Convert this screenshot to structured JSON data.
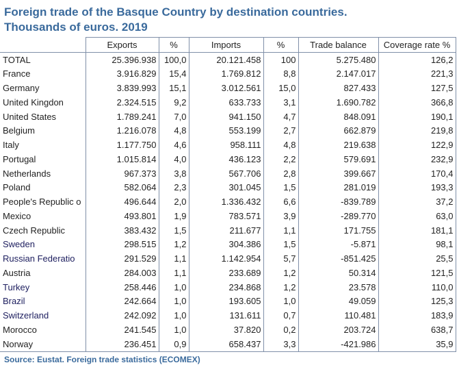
{
  "title": {
    "line1": "Foreign trade of the Basque Country by destination countries.",
    "line2": "Thousands of euros. 2019"
  },
  "columns": [
    "Exports",
    "%",
    "Imports",
    "%",
    "Trade balance",
    "Coverage rate %"
  ],
  "rows": [
    {
      "country": "TOTAL",
      "exports": "25.396.938",
      "exp_pct": "100,0",
      "imports": "20.121.458",
      "imp_pct": "100",
      "balance": "5.275.480",
      "coverage": "126,2"
    },
    {
      "country": "France",
      "exports": "3.916.829",
      "exp_pct": "15,4",
      "imports": "1.769.812",
      "imp_pct": "8,8",
      "balance": "2.147.017",
      "coverage": "221,3"
    },
    {
      "country": "Germany",
      "exports": "3.839.993",
      "exp_pct": "15,1",
      "imports": "3.012.561",
      "imp_pct": "15,0",
      "balance": "827.433",
      "coverage": "127,5"
    },
    {
      "country": "United Kingdon",
      "exports": "2.324.515",
      "exp_pct": "9,2",
      "imports": "633.733",
      "imp_pct": "3,1",
      "balance": "1.690.782",
      "coverage": "366,8"
    },
    {
      "country": "United States",
      "exports": "1.789.241",
      "exp_pct": "7,0",
      "imports": "941.150",
      "imp_pct": "4,7",
      "balance": "848.091",
      "coverage": "190,1"
    },
    {
      "country": "Belgium",
      "exports": "1.216.078",
      "exp_pct": "4,8",
      "imports": "553.199",
      "imp_pct": "2,7",
      "balance": "662.879",
      "coverage": "219,8"
    },
    {
      "country": "Italy",
      "exports": "1.177.750",
      "exp_pct": "4,6",
      "imports": "958.111",
      "imp_pct": "4,8",
      "balance": "219.638",
      "coverage": "122,9"
    },
    {
      "country": "Portugal",
      "exports": "1.015.814",
      "exp_pct": "4,0",
      "imports": "436.123",
      "imp_pct": "2,2",
      "balance": "579.691",
      "coverage": "232,9"
    },
    {
      "country": "Netherlands",
      "exports": "967.373",
      "exp_pct": "3,8",
      "imports": "567.706",
      "imp_pct": "2,8",
      "balance": "399.667",
      "coverage": "170,4"
    },
    {
      "country": "Poland",
      "exports": "582.064",
      "exp_pct": "2,3",
      "imports": "301.045",
      "imp_pct": "1,5",
      "balance": "281.019",
      "coverage": "193,3"
    },
    {
      "country": "People's Republic o",
      "exports": "496.644",
      "exp_pct": "2,0",
      "imports": "1.336.432",
      "imp_pct": "6,6",
      "balance": "-839.789",
      "coverage": "37,2"
    },
    {
      "country": "Mexico",
      "exports": "493.801",
      "exp_pct": "1,9",
      "imports": "783.571",
      "imp_pct": "3,9",
      "balance": "-289.770",
      "coverage": "63,0"
    },
    {
      "country": "Czech Republic",
      "exports": "383.432",
      "exp_pct": "1,5",
      "imports": "211.677",
      "imp_pct": "1,1",
      "balance": "171.755",
      "coverage": "181,1"
    },
    {
      "country": "Sweden",
      "exports": "298.515",
      "exp_pct": "1,2",
      "imports": "304.386",
      "imp_pct": "1,5",
      "balance": "-5.871",
      "coverage": "98,1"
    },
    {
      "country": "Russian Federatio",
      "exports": "291.529",
      "exp_pct": "1,1",
      "imports": "1.142.954",
      "imp_pct": "5,7",
      "balance": "-851.425",
      "coverage": "25,5"
    },
    {
      "country": "Austria",
      "exports": "284.003",
      "exp_pct": "1,1",
      "imports": "233.689",
      "imp_pct": "1,2",
      "balance": "50.314",
      "coverage": "121,5"
    },
    {
      "country": "Turkey",
      "exports": "258.446",
      "exp_pct": "1,0",
      "imports": "234.868",
      "imp_pct": "1,2",
      "balance": "23.578",
      "coverage": "110,0"
    },
    {
      "country": "Brazil",
      "exports": "242.664",
      "exp_pct": "1,0",
      "imports": "193.605",
      "imp_pct": "1,0",
      "balance": "49.059",
      "coverage": "125,3"
    },
    {
      "country": "Switzerland",
      "exports": "242.092",
      "exp_pct": "1,0",
      "imports": "131.611",
      "imp_pct": "0,7",
      "balance": "110.481",
      "coverage": "183,9"
    },
    {
      "country": "Morocco",
      "exports": "241.545",
      "exp_pct": "1,0",
      "imports": "37.820",
      "imp_pct": "0,2",
      "balance": "203.724",
      "coverage": "638,7"
    },
    {
      "country": "Norway",
      "exports": "236.451",
      "exp_pct": "0,9",
      "imports": "658.437",
      "imp_pct": "3,3",
      "balance": "-421.986",
      "coverage": "35,9"
    }
  ],
  "source": "Source: Eustat. Foreign trade statistics (ECOMEX)"
}
